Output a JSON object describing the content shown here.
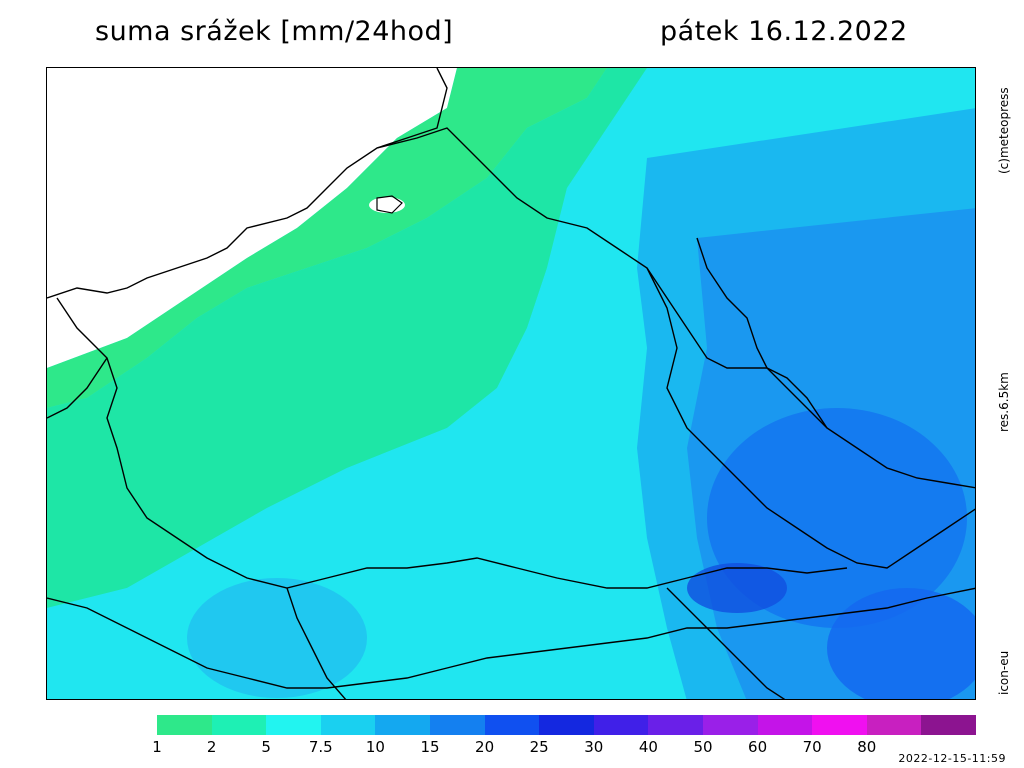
{
  "header": {
    "title": "suma srážek [mm/24hod]",
    "date": "pátek 16.12.2022"
  },
  "side_labels": {
    "copyright": "(c)meteopress",
    "resolution": "res.6.5km",
    "model": "icon-eu"
  },
  "legend": {
    "colors": [
      "#2ee88a",
      "#1ef0b4",
      "#22f4f0",
      "#1ad0f0",
      "#14a8f0",
      "#1480f0",
      "#1050f0",
      "#1428e0",
      "#4020e8",
      "#6a20e8",
      "#9a20e8",
      "#c414e8",
      "#f010f0",
      "#c820c0",
      "#8c1490"
    ],
    "labels": [
      "1",
      "2",
      "5",
      "7.5",
      "10",
      "15",
      "20",
      "25",
      "30",
      "40",
      "50",
      "60",
      "70",
      "80"
    ]
  },
  "timestamp": "2022-12-15-11:59"
}
